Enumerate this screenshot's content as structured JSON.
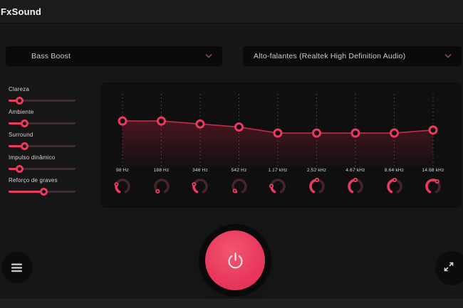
{
  "app": {
    "title": "FxSound"
  },
  "colors": {
    "accent": "#e73c5e",
    "curve_line": "#c42b4a",
    "curve_fill": "#c42442",
    "knob_track": "#46242d",
    "slider_track": "#3c2f33",
    "dash": "#4e4e4e"
  },
  "preset_dropdown": {
    "value": "Bass Boost",
    "icon": "chevron-down-icon"
  },
  "device_dropdown": {
    "value": "Alto-falantes (Realtek High Definition Audio)",
    "icon": "chevron-down-icon"
  },
  "effects": {
    "sliders": [
      {
        "label": "Clareza",
        "value": 0.16
      },
      {
        "label": "Ambiente",
        "value": 0.24
      },
      {
        "label": "Surround",
        "value": 0.24
      },
      {
        "label": "Impulso dinâmico",
        "value": 0.16
      },
      {
        "label": "Reforço de graves",
        "value": 0.53
      }
    ]
  },
  "equalizer": {
    "bands": [
      {
        "freq": "98 Hz",
        "level": 0.65,
        "knob": 0.26
      },
      {
        "freq": "188 Hz",
        "level": 0.65,
        "knob": 0.03
      },
      {
        "freq": "346 Hz",
        "level": 0.61,
        "knob": 0.26
      },
      {
        "freq": "542 Hz",
        "level": 0.57,
        "knob": 0.05
      },
      {
        "freq": "1.17 kHz",
        "level": 0.49,
        "knob": 0.21
      },
      {
        "freq": "2.52 kHz",
        "level": 0.49,
        "knob": 0.5
      },
      {
        "freq": "4.67 kHz",
        "level": 0.49,
        "knob": 0.5
      },
      {
        "freq": "8.64 kHz",
        "level": 0.49,
        "knob": 0.5
      },
      {
        "freq": "14.68 kHz",
        "level": 0.53,
        "knob": 0.63
      }
    ]
  }
}
